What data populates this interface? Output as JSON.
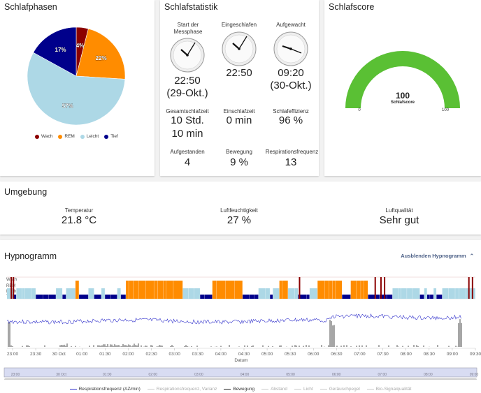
{
  "phases": {
    "title": "Schlafphasen",
    "slices": [
      {
        "name": "Wach",
        "pct": 4,
        "label": "4%",
        "color": "#8b0000"
      },
      {
        "name": "REM",
        "pct": 22,
        "label": "22%",
        "color": "#ff8c00"
      },
      {
        "name": "Leicht",
        "pct": 57,
        "label": "57%",
        "color": "#add8e6"
      },
      {
        "name": "Tief",
        "pct": 17,
        "label": "17%",
        "color": "#00008b"
      }
    ],
    "legend": [
      "Wach",
      "REM",
      "Leicht",
      "Tief"
    ]
  },
  "stats": {
    "title": "Schlafstatistik",
    "start_label": "Start der Messphase",
    "start_time": "22:50",
    "start_date": "(29-Okt.)",
    "asleep_label": "Eingeschlafen",
    "asleep_time": "22:50",
    "woke_label": "Aufgewacht",
    "woke_time": "09:20",
    "woke_date": "(30-Okt.)",
    "total_label": "Gesamtschlafzeit",
    "total_value_1": "10 Std.",
    "total_value_2": "10 min",
    "latency_label": "Einschlafzeit",
    "latency_value": "0 min",
    "efficiency_label": "Schlafeffizienz",
    "efficiency_value": "96 %",
    "getup_label": "Aufgestanden",
    "getup_value": "4",
    "movement_label": "Bewegung",
    "movement_value": "9 %",
    "resp_label": "Respirationsfrequenz",
    "resp_value": "13"
  },
  "score": {
    "title": "Schlafscore",
    "value": "100",
    "caption": "Schlafscore",
    "min": "0",
    "max": "100",
    "fraction": 1.0,
    "color": "#5ac034"
  },
  "environment": {
    "title": "Umgebung",
    "temp_label": "Temperatur",
    "temp_value": "21.8 °C",
    "humidity_label": "Luftfeuchtigkeit",
    "humidity_value": "27 %",
    "air_label": "Luftqualität",
    "air_value": "Sehr gut"
  },
  "hypnogram": {
    "title": "Hypnogramm",
    "toggle_label": "Ausblenden Hypnogramm",
    "stage_labels": [
      "Wach",
      "REM",
      "Leicht",
      "Tief"
    ],
    "x_ticks": [
      "23:00",
      "23:30",
      "30 Oct",
      "01:00",
      "01:30",
      "02:00",
      "02:30",
      "03:00",
      "03:30",
      "04:00",
      "04:30",
      "05:00",
      "05:30",
      "06:00",
      "06:30",
      "07:00",
      "07:30",
      "08:00",
      "08:30",
      "09:00",
      "09:30"
    ],
    "x_axis_label": "Datum",
    "nav_ticks": [
      "23:00",
      "30 Oct",
      "01:00",
      "02:00",
      "03:00",
      "04:00",
      "05:00",
      "06:00",
      "07:00",
      "08:00",
      "09:00"
    ],
    "legend": [
      {
        "name": "Respirationsfrequenz (AZ/min)",
        "color": "#3333cc",
        "active": true
      },
      {
        "name": "Respirationsfrequenz, Varianz",
        "color": "#cccccc",
        "active": false
      },
      {
        "name": "Bewegung",
        "color": "#222222",
        "active": true
      },
      {
        "name": "Abstand",
        "color": "#cccccc",
        "active": false
      },
      {
        "name": "Licht",
        "color": "#cccccc",
        "active": false
      },
      {
        "name": "Geräuschpegel",
        "color": "#cccccc",
        "active": false
      },
      {
        "name": "Bio-Signalqualität",
        "color": "#cccccc",
        "active": false
      }
    ]
  }
}
